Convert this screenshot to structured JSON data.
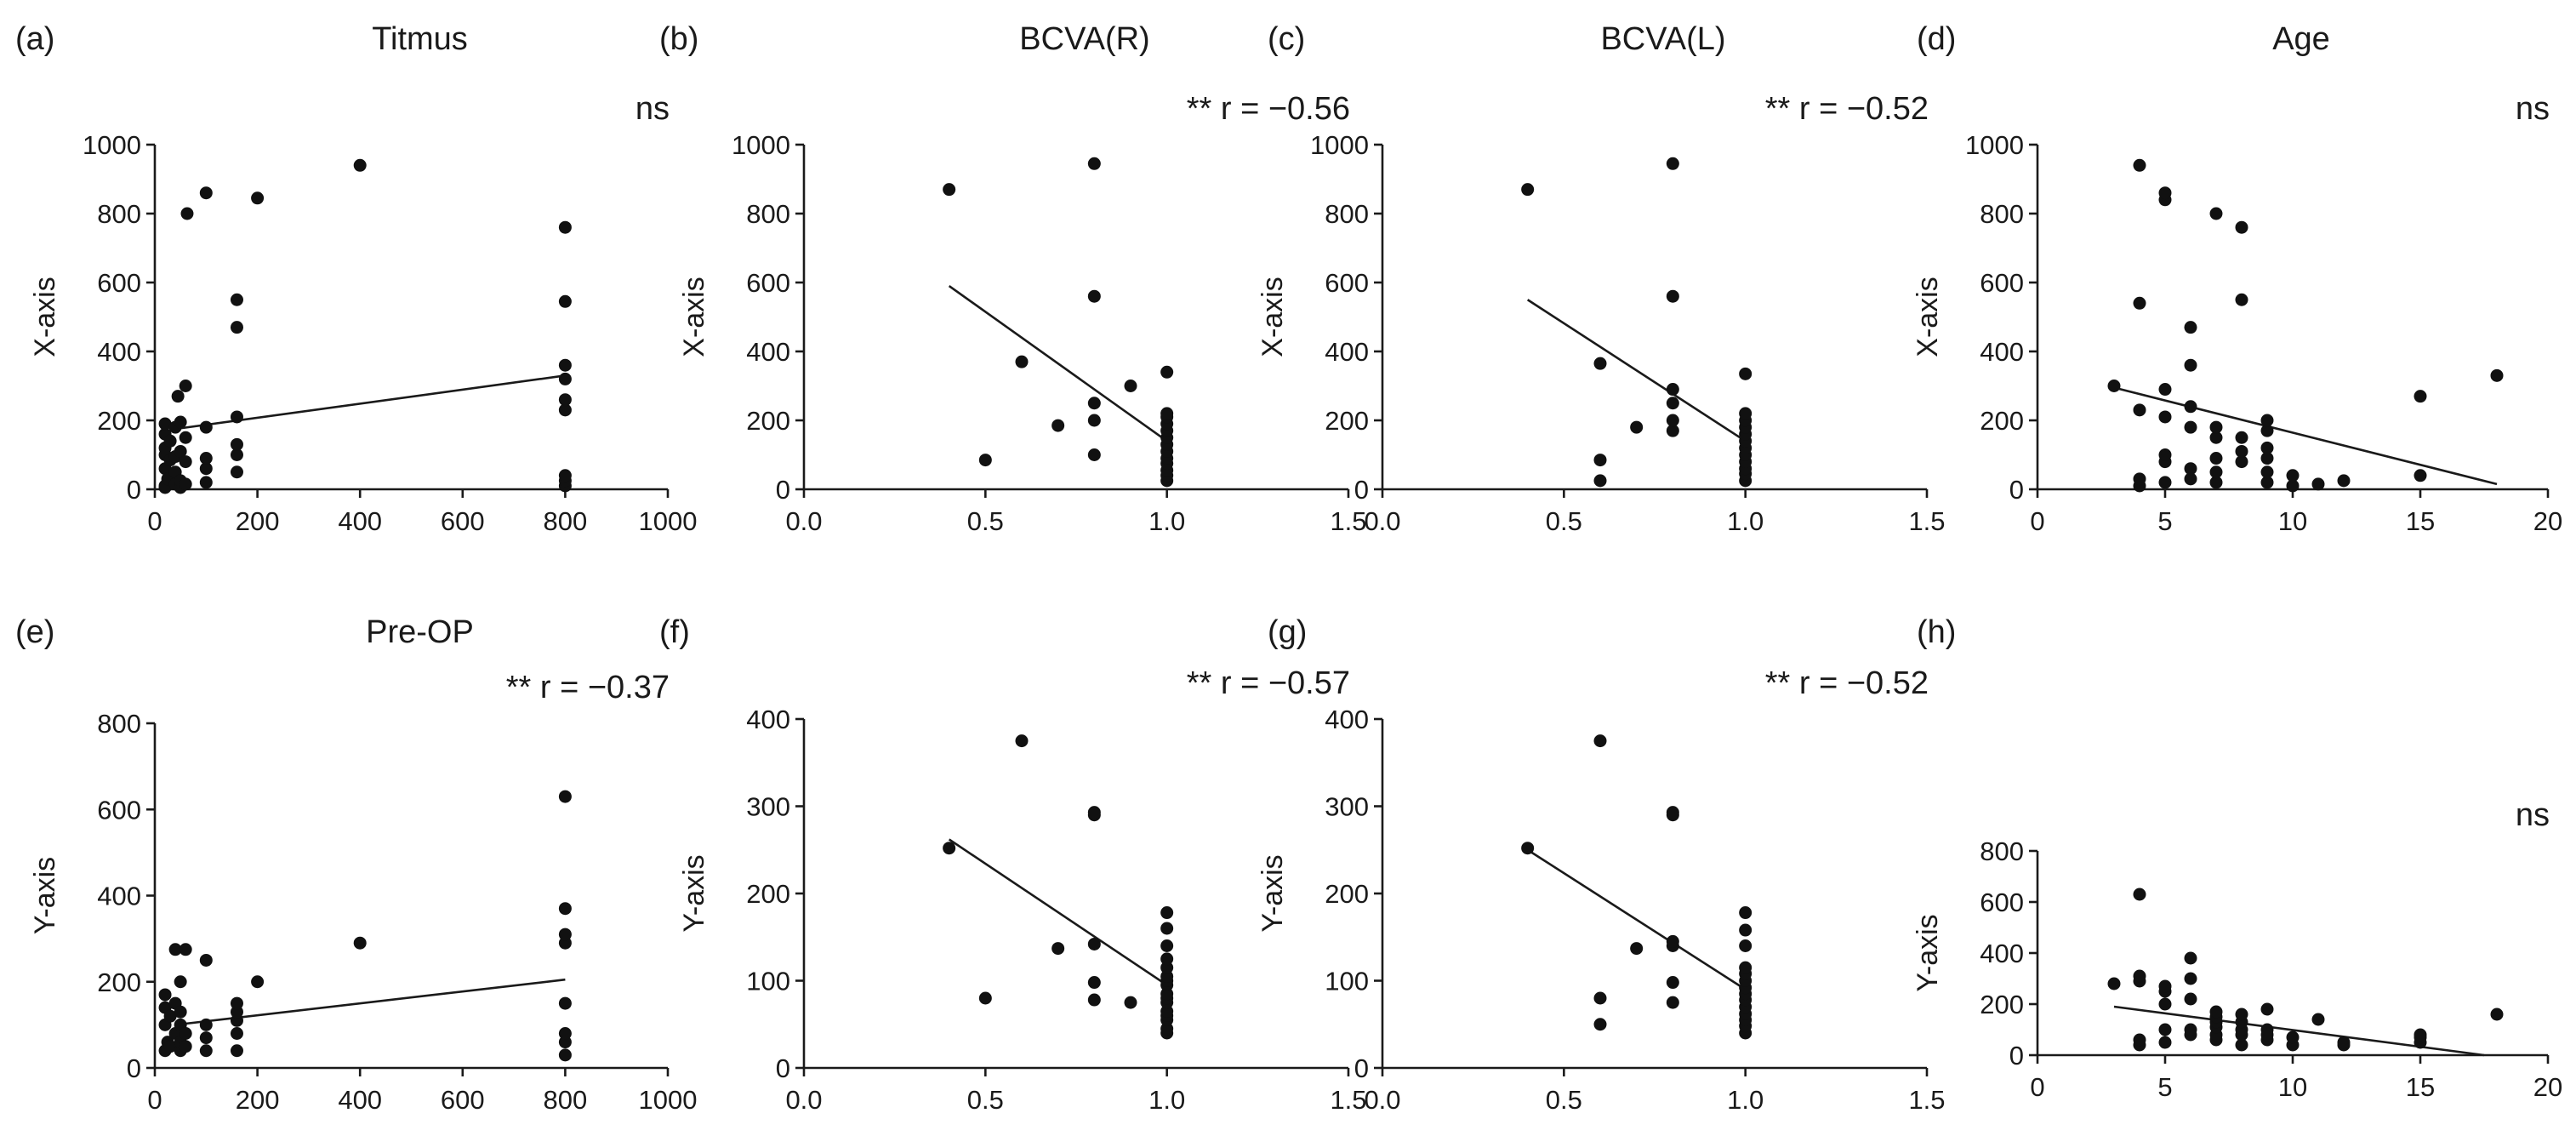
{
  "chart_data": [
    {
      "type": "scatter",
      "panel": "(a)",
      "title": "Titmus",
      "annotation": "ns",
      "ylabel": "X-axis",
      "xlabel": "",
      "xlim": [
        0,
        1000
      ],
      "ylim": [
        0,
        1000
      ],
      "xticks": [
        0,
        200,
        400,
        600,
        800,
        1000
      ],
      "xtick_labels": [
        "0",
        "200",
        "400",
        "600",
        "800",
        "1000"
      ],
      "yticks": [
        0,
        200,
        400,
        600,
        800,
        1000
      ],
      "ytick_labels": [
        "0",
        "200",
        "400",
        "600",
        "800",
        "1000"
      ],
      "fit": [
        [
          40,
          175
        ],
        [
          800,
          330
        ]
      ],
      "points": [
        [
          20,
          5
        ],
        [
          20,
          10
        ],
        [
          20,
          60
        ],
        [
          20,
          100
        ],
        [
          20,
          120
        ],
        [
          20,
          160
        ],
        [
          20,
          190
        ],
        [
          25,
          30
        ],
        [
          30,
          85
        ],
        [
          30,
          140
        ],
        [
          40,
          15
        ],
        [
          40,
          50
        ],
        [
          40,
          95
        ],
        [
          40,
          180
        ],
        [
          45,
          270
        ],
        [
          50,
          5
        ],
        [
          50,
          25
        ],
        [
          50,
          110
        ],
        [
          50,
          195
        ],
        [
          60,
          300
        ],
        [
          60,
          15
        ],
        [
          60,
          80
        ],
        [
          60,
          150
        ],
        [
          63,
          800
        ],
        [
          100,
          20
        ],
        [
          100,
          60
        ],
        [
          100,
          90
        ],
        [
          100,
          180
        ],
        [
          100,
          860
        ],
        [
          160,
          50
        ],
        [
          160,
          100
        ],
        [
          160,
          130
        ],
        [
          160,
          210
        ],
        [
          160,
          470
        ],
        [
          160,
          550
        ],
        [
          200,
          845
        ],
        [
          400,
          940
        ],
        [
          800,
          10
        ],
        [
          800,
          25
        ],
        [
          800,
          40
        ],
        [
          800,
          230
        ],
        [
          800,
          260
        ],
        [
          800,
          320
        ],
        [
          800,
          360
        ],
        [
          800,
          545
        ],
        [
          800,
          760
        ]
      ]
    },
    {
      "type": "scatter",
      "panel": "(b)",
      "title": "BCVA(R)",
      "annotation": "** r = −0.56",
      "ylabel": "X-axis",
      "xlabel": "",
      "xlim": [
        0,
        1.5
      ],
      "ylim": [
        0,
        1000
      ],
      "xticks": [
        0,
        0.5,
        1.0,
        1.5
      ],
      "xtick_labels": [
        "0.0",
        "0.5",
        "1.0",
        "1.5"
      ],
      "yticks": [
        0,
        200,
        400,
        600,
        800,
        1000
      ],
      "ytick_labels": [
        "0",
        "200",
        "400",
        "600",
        "800",
        "1000"
      ],
      "fit": [
        [
          0.4,
          590
        ],
        [
          1.0,
          140
        ]
      ],
      "points": [
        [
          0.4,
          870
        ],
        [
          0.5,
          85
        ],
        [
          0.6,
          370
        ],
        [
          0.7,
          185
        ],
        [
          0.8,
          100
        ],
        [
          0.8,
          200
        ],
        [
          0.8,
          250
        ],
        [
          0.8,
          560
        ],
        [
          0.8,
          945
        ],
        [
          0.9,
          300
        ],
        [
          1.0,
          25
        ],
        [
          1.0,
          40
        ],
        [
          1.0,
          55
        ],
        [
          1.0,
          75
        ],
        [
          1.0,
          90
        ],
        [
          1.0,
          110
        ],
        [
          1.0,
          130
        ],
        [
          1.0,
          150
        ],
        [
          1.0,
          170
        ],
        [
          1.0,
          190
        ],
        [
          1.0,
          210
        ],
        [
          1.0,
          220
        ],
        [
          1.0,
          340
        ]
      ]
    },
    {
      "type": "scatter",
      "panel": "(c)",
      "title": "BCVA(L)",
      "annotation": "** r = −0.52",
      "ylabel": "X-axis",
      "xlabel": "",
      "xlim": [
        0,
        1.5
      ],
      "ylim": [
        0,
        1000
      ],
      "xticks": [
        0,
        0.5,
        1.0,
        1.5
      ],
      "xtick_labels": [
        "0.0",
        "0.5",
        "1.0",
        "1.5"
      ],
      "yticks": [
        0,
        200,
        400,
        600,
        800,
        1000
      ],
      "ytick_labels": [
        "0",
        "200",
        "400",
        "600",
        "800",
        "1000"
      ],
      "fit": [
        [
          0.4,
          550
        ],
        [
          1.0,
          140
        ]
      ],
      "points": [
        [
          0.4,
          870
        ],
        [
          0.6,
          25
        ],
        [
          0.6,
          85
        ],
        [
          0.6,
          365
        ],
        [
          0.7,
          180
        ],
        [
          0.8,
          170
        ],
        [
          0.8,
          200
        ],
        [
          0.8,
          250
        ],
        [
          0.8,
          290
        ],
        [
          0.8,
          560
        ],
        [
          0.8,
          945
        ],
        [
          1.0,
          25
        ],
        [
          1.0,
          45
        ],
        [
          1.0,
          60
        ],
        [
          1.0,
          80
        ],
        [
          1.0,
          100
        ],
        [
          1.0,
          120
        ],
        [
          1.0,
          140
        ],
        [
          1.0,
          160
        ],
        [
          1.0,
          180
        ],
        [
          1.0,
          200
        ],
        [
          1.0,
          220
        ],
        [
          1.0,
          335
        ]
      ]
    },
    {
      "type": "scatter",
      "panel": "(d)",
      "title": "Age",
      "annotation": "ns",
      "ylabel": "X-axis",
      "xlabel": "",
      "xlim": [
        0,
        20
      ],
      "ylim": [
        0,
        1000
      ],
      "xticks": [
        0,
        5,
        10,
        15,
        20
      ],
      "xtick_labels": [
        "0",
        "5",
        "10",
        "15",
        "20"
      ],
      "yticks": [
        0,
        200,
        400,
        600,
        800,
        1000
      ],
      "ytick_labels": [
        "0",
        "200",
        "400",
        "600",
        "800",
        "1000"
      ],
      "fit": [
        [
          3,
          295
        ],
        [
          18,
          15
        ]
      ],
      "points": [
        [
          3,
          300
        ],
        [
          4,
          10
        ],
        [
          4,
          30
        ],
        [
          4,
          230
        ],
        [
          4,
          540
        ],
        [
          4,
          940
        ],
        [
          5,
          20
        ],
        [
          5,
          80
        ],
        [
          5,
          100
        ],
        [
          5,
          210
        ],
        [
          5,
          290
        ],
        [
          5,
          840
        ],
        [
          5,
          860
        ],
        [
          6,
          30
        ],
        [
          6,
          60
        ],
        [
          6,
          180
        ],
        [
          6,
          240
        ],
        [
          6,
          360
        ],
        [
          6,
          470
        ],
        [
          7,
          20
        ],
        [
          7,
          50
        ],
        [
          7,
          90
        ],
        [
          7,
          150
        ],
        [
          7,
          180
        ],
        [
          7,
          800
        ],
        [
          8,
          80
        ],
        [
          8,
          110
        ],
        [
          8,
          150
        ],
        [
          8,
          550
        ],
        [
          8,
          760
        ],
        [
          9,
          20
        ],
        [
          9,
          50
        ],
        [
          9,
          90
        ],
        [
          9,
          120
        ],
        [
          9,
          170
        ],
        [
          9,
          200
        ],
        [
          10,
          10
        ],
        [
          10,
          40
        ],
        [
          11,
          15
        ],
        [
          12,
          25
        ],
        [
          15,
          40
        ],
        [
          15,
          270
        ],
        [
          18,
          330
        ]
      ]
    },
    {
      "type": "scatter",
      "panel": "(e)",
      "title": "Pre-OP",
      "annotation": "** r = −0.37",
      "ylabel": "Y-axis",
      "xlabel": "",
      "xlim": [
        0,
        1000
      ],
      "ylim": [
        0,
        800
      ],
      "xticks": [
        0,
        200,
        400,
        600,
        800,
        1000
      ],
      "xtick_labels": [
        "0",
        "200",
        "400",
        "600",
        "800",
        "1000"
      ],
      "yticks": [
        0,
        200,
        400,
        600,
        800
      ],
      "ytick_labels": [
        "0",
        "200",
        "400",
        "600",
        "800"
      ],
      "fit": [
        [
          40,
          100
        ],
        [
          800,
          205
        ]
      ],
      "points": [
        [
          20,
          40
        ],
        [
          20,
          100
        ],
        [
          20,
          140
        ],
        [
          20,
          170
        ],
        [
          25,
          60
        ],
        [
          30,
          50
        ],
        [
          30,
          120
        ],
        [
          40,
          80
        ],
        [
          40,
          150
        ],
        [
          40,
          275
        ],
        [
          50,
          40
        ],
        [
          50,
          60
        ],
        [
          50,
          100
        ],
        [
          50,
          130
        ],
        [
          50,
          200
        ],
        [
          60,
          50
        ],
        [
          60,
          80
        ],
        [
          60,
          275
        ],
        [
          100,
          40
        ],
        [
          100,
          70
        ],
        [
          100,
          100
        ],
        [
          100,
          250
        ],
        [
          160,
          40
        ],
        [
          160,
          80
        ],
        [
          160,
          110
        ],
        [
          160,
          130
        ],
        [
          160,
          150
        ],
        [
          200,
          200
        ],
        [
          400,
          290
        ],
        [
          800,
          30
        ],
        [
          800,
          60
        ],
        [
          800,
          80
        ],
        [
          800,
          150
        ],
        [
          800,
          290
        ],
        [
          800,
          310
        ],
        [
          800,
          370
        ],
        [
          800,
          630
        ]
      ]
    },
    {
      "type": "scatter",
      "panel": "(f)",
      "title": "",
      "annotation": "** r = −0.57",
      "ylabel": "Y-axis",
      "xlabel": "",
      "xlim": [
        0,
        1.5
      ],
      "ylim": [
        0,
        400
      ],
      "xticks": [
        0,
        0.5,
        1.0,
        1.5
      ],
      "xtick_labels": [
        "0.0",
        "0.5",
        "1.0",
        "1.5"
      ],
      "yticks": [
        0,
        100,
        200,
        300,
        400
      ],
      "ytick_labels": [
        "0",
        "100",
        "200",
        "300",
        "400"
      ],
      "fit": [
        [
          0.4,
          262
        ],
        [
          1.0,
          95
        ]
      ],
      "points": [
        [
          0.4,
          252
        ],
        [
          0.5,
          80
        ],
        [
          0.6,
          375
        ],
        [
          0.7,
          137
        ],
        [
          0.8,
          78
        ],
        [
          0.8,
          98
        ],
        [
          0.8,
          142
        ],
        [
          0.8,
          290
        ],
        [
          0.8,
          293
        ],
        [
          0.9,
          75
        ],
        [
          1.0,
          40
        ],
        [
          1.0,
          45
        ],
        [
          1.0,
          55
        ],
        [
          1.0,
          60
        ],
        [
          1.0,
          65
        ],
        [
          1.0,
          75
        ],
        [
          1.0,
          80
        ],
        [
          1.0,
          85
        ],
        [
          1.0,
          95
        ],
        [
          1.0,
          100
        ],
        [
          1.0,
          105
        ],
        [
          1.0,
          115
        ],
        [
          1.0,
          125
        ],
        [
          1.0,
          140
        ],
        [
          1.0,
          160
        ],
        [
          1.0,
          178
        ]
      ]
    },
    {
      "type": "scatter",
      "panel": "(g)",
      "title": "",
      "annotation": "** r = −0.52",
      "ylabel": "Y-axis",
      "xlabel": "",
      "xlim": [
        0,
        1.5
      ],
      "ylim": [
        0,
        400
      ],
      "xticks": [
        0,
        0.5,
        1.0,
        1.5
      ],
      "xtick_labels": [
        "0.0",
        "0.5",
        "1.0",
        "1.5"
      ],
      "yticks": [
        0,
        100,
        200,
        300,
        400
      ],
      "ytick_labels": [
        "0",
        "100",
        "200",
        "300",
        "400"
      ],
      "fit": [
        [
          0.4,
          250
        ],
        [
          1.0,
          90
        ]
      ],
      "points": [
        [
          0.4,
          252
        ],
        [
          0.6,
          50
        ],
        [
          0.6,
          80
        ],
        [
          0.6,
          375
        ],
        [
          0.7,
          137
        ],
        [
          0.8,
          75
        ],
        [
          0.8,
          98
        ],
        [
          0.8,
          140
        ],
        [
          0.8,
          145
        ],
        [
          0.8,
          290
        ],
        [
          0.8,
          293
        ],
        [
          1.0,
          40
        ],
        [
          1.0,
          48
        ],
        [
          1.0,
          55
        ],
        [
          1.0,
          62
        ],
        [
          1.0,
          70
        ],
        [
          1.0,
          78
        ],
        [
          1.0,
          85
        ],
        [
          1.0,
          92
        ],
        [
          1.0,
          100
        ],
        [
          1.0,
          108
        ],
        [
          1.0,
          115
        ],
        [
          1.0,
          140
        ],
        [
          1.0,
          158
        ],
        [
          1.0,
          178
        ]
      ]
    },
    {
      "type": "scatter",
      "panel": "(h)",
      "title": "",
      "annotation": "ns",
      "ylabel": "Y-axis",
      "xlabel": "",
      "xlim": [
        0,
        20
      ],
      "ylim": [
        0,
        800
      ],
      "xticks": [
        0,
        5,
        10,
        15,
        20
      ],
      "xtick_labels": [
        "0",
        "5",
        "10",
        "15",
        "20"
      ],
      "yticks": [
        0,
        200,
        400,
        600,
        800
      ],
      "ytick_labels": [
        "0",
        "200",
        "400",
        "600",
        "800"
      ],
      "fit": [
        [
          3,
          190
        ],
        [
          17.5,
          0
        ]
      ],
      "points": [
        [
          3,
          280
        ],
        [
          4,
          40
        ],
        [
          4,
          60
        ],
        [
          4,
          290
        ],
        [
          4,
          310
        ],
        [
          4,
          630
        ],
        [
          5,
          50
        ],
        [
          5,
          100
        ],
        [
          5,
          200
        ],
        [
          5,
          250
        ],
        [
          5,
          270
        ],
        [
          6,
          80
        ],
        [
          6,
          100
        ],
        [
          6,
          220
        ],
        [
          6,
          300
        ],
        [
          6,
          380
        ],
        [
          7,
          60
        ],
        [
          7,
          80
        ],
        [
          7,
          110
        ],
        [
          7,
          130
        ],
        [
          7,
          150
        ],
        [
          7,
          170
        ],
        [
          8,
          40
        ],
        [
          8,
          80
        ],
        [
          8,
          100
        ],
        [
          8,
          130
        ],
        [
          8,
          160
        ],
        [
          9,
          60
        ],
        [
          9,
          80
        ],
        [
          9,
          100
        ],
        [
          9,
          180
        ],
        [
          10,
          40
        ],
        [
          10,
          70
        ],
        [
          11,
          140
        ],
        [
          12,
          40
        ],
        [
          12,
          50
        ],
        [
          15,
          50
        ],
        [
          15,
          70
        ],
        [
          15,
          80
        ],
        [
          18,
          160
        ]
      ]
    }
  ]
}
